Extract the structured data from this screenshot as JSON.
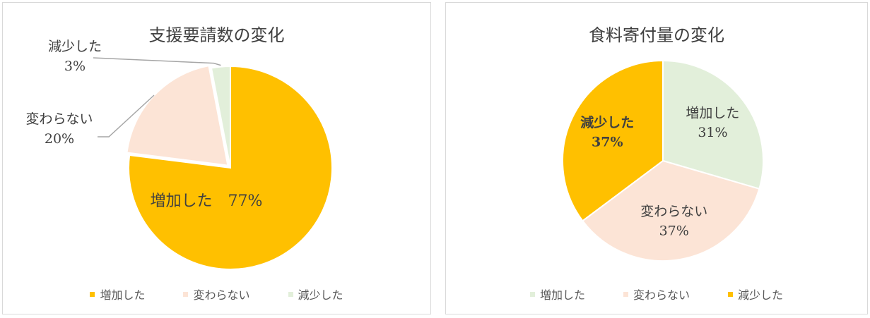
{
  "chart_data": [
    {
      "type": "pie",
      "title": "支援要請数の変化",
      "categories": [
        "増加した",
        "変わらない",
        "減少した"
      ],
      "values": [
        77,
        20,
        3
      ],
      "data_labels": [
        "増加した　77%",
        "変わらない\n20%",
        "減少した\n3%"
      ],
      "colors": [
        "#FFC000",
        "#FCE4D6",
        "#E2EFDA"
      ],
      "legend": "bottom",
      "legend_labels": [
        "増加した",
        "変わらない",
        "減少した"
      ]
    },
    {
      "type": "pie",
      "title": "食料寄付量の変化",
      "categories": [
        "増加した",
        "変わらない",
        "減少した"
      ],
      "values": [
        31,
        37,
        37
      ],
      "data_labels": [
        "増加した\n31%",
        "変わらない\n37%",
        "減少した\n37%"
      ],
      "colors": [
        "#E2EFDA",
        "#FCE4D6",
        "#FFC000"
      ],
      "legend": "bottom",
      "legend_labels": [
        "増加した",
        "変わらない",
        "減少した"
      ]
    }
  ]
}
